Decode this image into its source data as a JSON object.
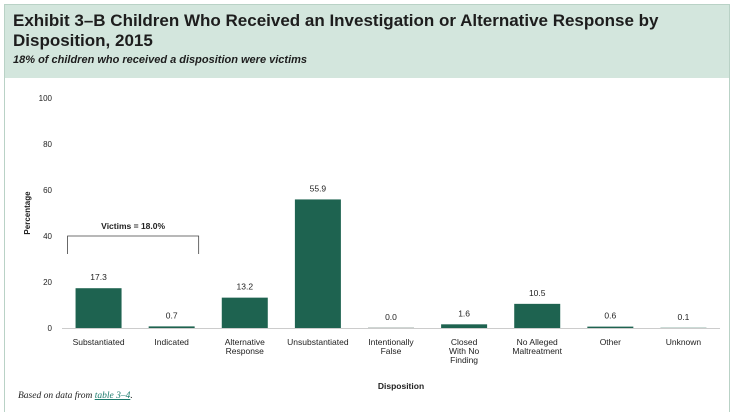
{
  "header": {
    "title": "Exhibit 3–B Children Who Received an Investigation or Alternative Response by Disposition, 2015",
    "subtitle": "18% of children who received a disposition were victims"
  },
  "chart_data": {
    "type": "bar",
    "title": "Exhibit 3–B Children Who Received an Investigation or Alternative Response by Disposition, 2015",
    "xlabel": "Disposition",
    "ylabel": "Percentage",
    "ylim": [
      0,
      100
    ],
    "yticks": [
      0,
      20,
      40,
      60,
      80,
      100
    ],
    "grid": false,
    "categories": [
      "Substantiated",
      "Indicated",
      "Alternative Response",
      "Unsubstantiated",
      "Intentionally False",
      "Closed With No Finding",
      "No Alleged Maltreatment",
      "Other",
      "Unknown"
    ],
    "category_lines": [
      [
        "Substantiated"
      ],
      [
        "Indicated"
      ],
      [
        "Alternative",
        "Response"
      ],
      [
        "Unsubstantiated"
      ],
      [
        "Intentionally",
        "False"
      ],
      [
        "Closed",
        "With No",
        "Finding"
      ],
      [
        "No Alleged",
        "Maltreatment"
      ],
      [
        "Other"
      ],
      [
        "Unknown"
      ]
    ],
    "values": [
      17.3,
      0.7,
      13.2,
      55.9,
      0.0,
      1.6,
      10.5,
      0.6,
      0.1
    ],
    "value_labels": [
      "17.3",
      "0.7",
      "13.2",
      "55.9",
      "0.0",
      "1.6",
      "10.5",
      "0.6",
      "0.1"
    ],
    "annotation": {
      "text": "Victims = 18.0%",
      "spans": [
        "Substantiated",
        "Indicated"
      ]
    },
    "bar_color": "#1e6350",
    "zero_bar_color": "#cfd6d3"
  },
  "footnote": {
    "prefix": "Based on data from ",
    "link": "table 3–4",
    "suffix": "."
  }
}
